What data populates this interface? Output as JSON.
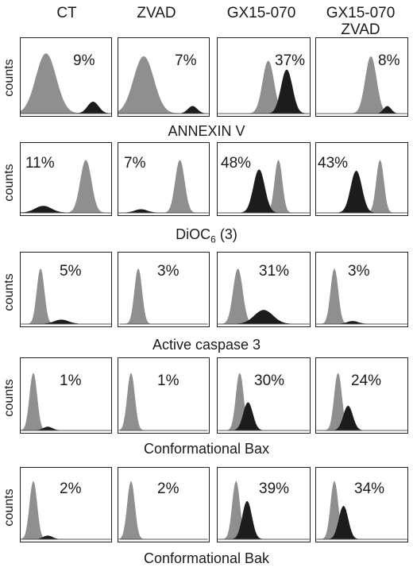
{
  "columns": [
    {
      "line1": "CT",
      "line2": ""
    },
    {
      "line1": "ZVAD",
      "line2": ""
    },
    {
      "line1": "GX15-070",
      "line2": ""
    },
    {
      "line1": "GX15-070",
      "line2": "ZVAD"
    }
  ],
  "y_axis_label": "counts",
  "rows": [
    {
      "label": "ANNEXIN V",
      "percentages": [
        "9%",
        "7%",
        "37%",
        "8%"
      ]
    },
    {
      "label_main": "DiOC",
      "label_sub": "6",
      "label_tail": " (3)",
      "percentages": [
        "11%",
        "7%",
        "48%",
        "43%"
      ]
    },
    {
      "label": "Active caspase 3",
      "percentages": [
        "5%",
        "3%",
        "31%",
        "3%"
      ]
    },
    {
      "label": "Conformational Bax",
      "percentages": [
        "1%",
        "1%",
        "30%",
        "24%"
      ]
    },
    {
      "label": "Conformational Bak",
      "percentages": [
        "2%",
        "2%",
        "39%",
        "34%"
      ]
    }
  ],
  "colors": {
    "light_peak": "#8f8f8f",
    "dark_peak": "#1c1c1c",
    "border": "#222222"
  }
}
